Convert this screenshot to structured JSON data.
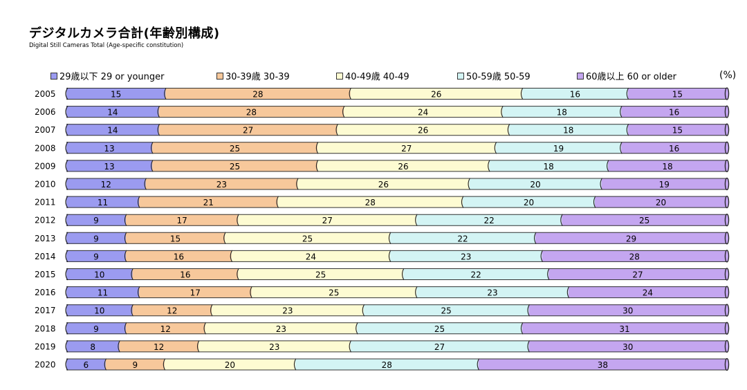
{
  "chart_data": {
    "type": "bar",
    "orientation": "horizontal",
    "stacked": "100%",
    "title": "デジタルカメラ合計(年齢別構成)",
    "subtitle": "Digital Still Cameras Total (Age-specific constitution)",
    "unit_label": "(%)",
    "categories": [
      "2005",
      "2006",
      "2007",
      "2008",
      "2009",
      "2010",
      "2011",
      "2012",
      "2013",
      "2014",
      "2015",
      "2016",
      "2017",
      "2018",
      "2019",
      "2020"
    ],
    "series": [
      {
        "name": "29歳以下 29 or younger",
        "color": "#9b9bf0",
        "values": [
          15,
          14,
          14,
          13,
          13,
          12,
          11,
          9,
          9,
          9,
          10,
          11,
          10,
          9,
          8,
          6
        ]
      },
      {
        "name": "30-39歳 30-39",
        "color": "#f7c89b",
        "values": [
          28,
          28,
          27,
          25,
          25,
          23,
          21,
          17,
          15,
          16,
          16,
          17,
          12,
          12,
          12,
          9
        ]
      },
      {
        "name": "40-49歳 40-49",
        "color": "#fdfbd2",
        "values": [
          26,
          24,
          26,
          27,
          26,
          26,
          28,
          27,
          25,
          24,
          25,
          25,
          23,
          23,
          23,
          20
        ]
      },
      {
        "name": "50-59歳 50-59",
        "color": "#d3f4f4",
        "values": [
          16,
          18,
          18,
          19,
          18,
          20,
          20,
          22,
          22,
          23,
          22,
          23,
          25,
          25,
          27,
          28
        ]
      },
      {
        "name": "60歳以上 60 or older",
        "color": "#c4a6f0",
        "values": [
          15,
          16,
          15,
          16,
          18,
          19,
          20,
          25,
          29,
          28,
          27,
          24,
          30,
          31,
          30,
          38
        ]
      }
    ],
    "legend": "top",
    "grid": false
  }
}
